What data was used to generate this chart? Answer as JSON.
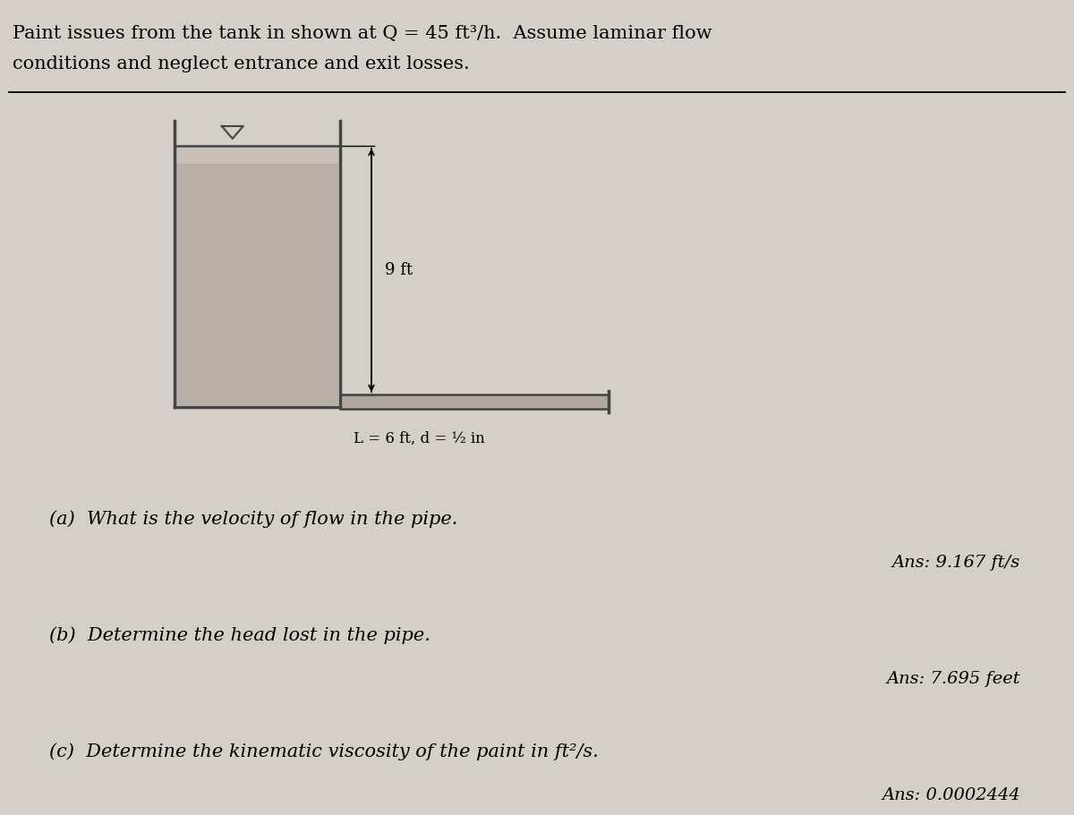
{
  "background_color": "#d4cfc8",
  "title_line1": "Paint issues from the tank in shown at Q = 45 ft³/h.  Assume laminar flow",
  "title_line2": "conditions and neglect entrance and exit losses.",
  "tank_fill_color": "#c0b8b0",
  "tank_edge_color": "#444444",
  "dim_9ft_label": "9 ft",
  "pipe_label": "L = 6 ft, d = ½ in",
  "q_label_a": "(a)  What is the velocity of flow in the pipe.",
  "ans_a": "Ans: 9.167 ft/s",
  "q_label_b": "(b)  Determine the head lost in the pipe.",
  "ans_b": "Ans: 7.695 feet",
  "q_label_c": "(c)  Determine the kinematic viscosity of the paint in ft²/s.",
  "ans_c": "Ans: 0.0002444",
  "font_size_title": 15,
  "font_size_text": 15,
  "font_size_ans": 14,
  "font_size_diagram": 13
}
